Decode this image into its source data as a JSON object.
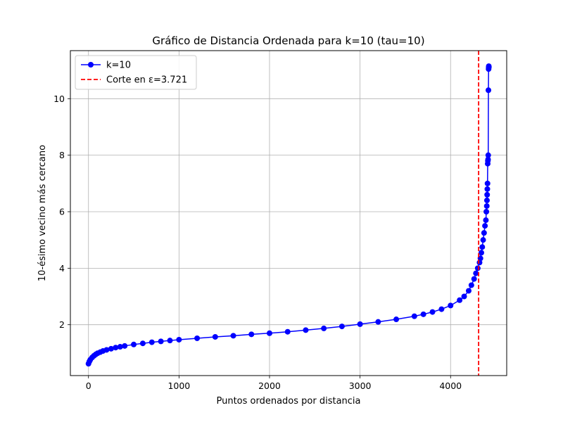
{
  "chart_data": {
    "type": "line",
    "title": "Gráfico de Distancia Ordenada para k=10 (tau=10)",
    "xlabel": "Puntos ordenados por distancia",
    "ylabel": "10-ésimo vecino más cercano",
    "xlim": [
      -200,
      4620
    ],
    "ylim": [
      0.2,
      11.7
    ],
    "xticks": [
      0,
      1000,
      2000,
      3000,
      4000
    ],
    "yticks": [
      2,
      4,
      6,
      8,
      10
    ],
    "grid": true,
    "legend_position": "top-left",
    "series": [
      {
        "name": "k=10",
        "color": "#0000ff",
        "marker": "circle",
        "x": [
          0,
          10,
          20,
          40,
          60,
          80,
          100,
          130,
          160,
          200,
          250,
          300,
          350,
          400,
          500,
          600,
          700,
          800,
          900,
          1000,
          1200,
          1400,
          1600,
          1800,
          2000,
          2200,
          2400,
          2600,
          2800,
          3000,
          3200,
          3400,
          3600,
          3700,
          3800,
          3900,
          4000,
          4100,
          4150,
          4200,
          4230,
          4260,
          4280,
          4300,
          4320,
          4330,
          4340,
          4350,
          4360,
          4370,
          4380,
          4390,
          4395,
          4400,
          4402,
          4404,
          4406,
          4408,
          4410,
          4412,
          4414,
          4416,
          4418,
          4420,
          4421,
          4422,
          4423
        ],
        "y": [
          0.62,
          0.7,
          0.76,
          0.84,
          0.9,
          0.95,
          0.99,
          1.03,
          1.07,
          1.11,
          1.15,
          1.19,
          1.22,
          1.25,
          1.3,
          1.34,
          1.38,
          1.41,
          1.44,
          1.47,
          1.52,
          1.57,
          1.61,
          1.66,
          1.7,
          1.75,
          1.81,
          1.87,
          1.94,
          2.02,
          2.1,
          2.19,
          2.3,
          2.37,
          2.45,
          2.55,
          2.68,
          2.87,
          3.0,
          3.2,
          3.4,
          3.62,
          3.82,
          4.0,
          4.2,
          4.35,
          4.55,
          4.75,
          5.0,
          5.25,
          5.5,
          5.7,
          6.0,
          6.2,
          6.4,
          6.6,
          6.8,
          7.0,
          7.7,
          7.8,
          7.85,
          8.0,
          10.3,
          11.05,
          11.1,
          11.15,
          11.12
        ]
      }
    ],
    "vlines": [
      {
        "name": "Corte en ε=3.721",
        "x": 4310,
        "color": "#ff0000",
        "style": "dashed"
      }
    ]
  }
}
